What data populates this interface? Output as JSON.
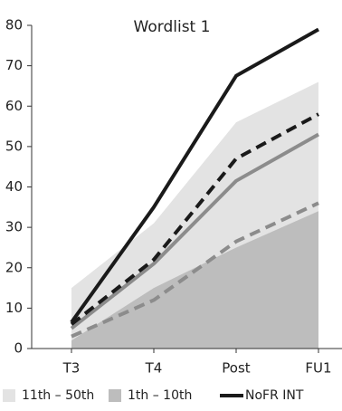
{
  "chart_data": {
    "type": "line",
    "title": "Wordlist 1",
    "categories": [
      "T3",
      "T4",
      "Post",
      "FU1"
    ],
    "ylim": [
      0,
      80
    ],
    "yticks": [
      0,
      10,
      20,
      30,
      40,
      50,
      60,
      70,
      80
    ],
    "grid": false,
    "series": [
      {
        "name": "11th – 50th",
        "type": "area",
        "color": "#e3e3e3",
        "values": [
          15,
          31,
          56,
          66
        ]
      },
      {
        "name": "1th – 10th",
        "type": "area",
        "color": "#bdbdbd",
        "values": [
          2,
          15,
          25,
          34
        ]
      },
      {
        "type": "line",
        "dash": true,
        "color": "#8c8c8c",
        "values": [
          3,
          12,
          26.5,
          36
        ]
      },
      {
        "type": "line",
        "dash": false,
        "color": "#8c8c8c",
        "values": [
          5,
          21,
          41.5,
          53
        ]
      },
      {
        "type": "line",
        "dash": true,
        "color": "#1a1a1a",
        "values": [
          6,
          22,
          47,
          58
        ]
      },
      {
        "name": "NoFR INT",
        "type": "line",
        "dash": false,
        "color": "#1a1a1a",
        "values": [
          6.5,
          35,
          67.5,
          79
        ]
      }
    ]
  }
}
